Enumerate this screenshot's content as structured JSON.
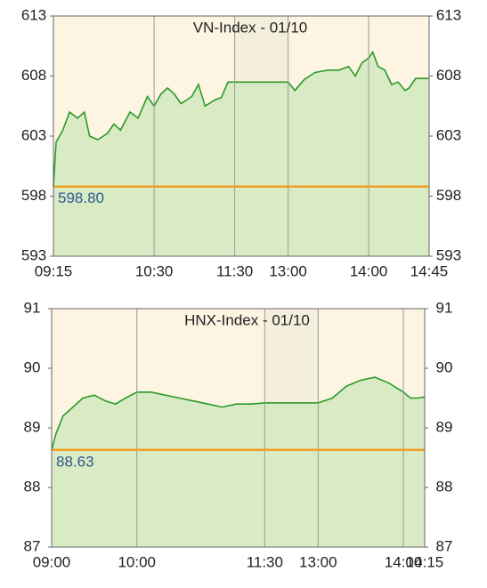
{
  "chart_data": [
    {
      "type": "line",
      "title": "VN-Index - 01/10",
      "x": [
        "09:15",
        "09:17",
        "09:22",
        "09:27",
        "09:33",
        "09:38",
        "09:42",
        "09:48",
        "09:55",
        "10:00",
        "10:05",
        "10:12",
        "10:18",
        "10:25",
        "10:30",
        "10:35",
        "10:40",
        "10:45",
        "10:50",
        "10:58",
        "11:03",
        "11:08",
        "11:15",
        "11:20",
        "11:25",
        "11:30",
        "13:00",
        "13:05",
        "13:12",
        "13:20",
        "13:30",
        "13:38",
        "13:45",
        "13:50",
        "13:55",
        "14:00",
        "14:03",
        "14:07",
        "14:12",
        "14:17",
        "14:22",
        "14:27",
        "14:30",
        "14:35",
        "14:45"
      ],
      "series": [
        {
          "color": "#2a9a2a",
          "values": [
            598.8,
            602.5,
            603.5,
            605,
            604.5,
            605,
            603,
            602.7,
            603.2,
            604,
            603.5,
            605,
            604.5,
            606.3,
            605.5,
            606.5,
            607,
            606.5,
            605.7,
            606.3,
            607.3,
            605.5,
            606,
            606.2,
            607.5,
            607.5,
            607.5,
            606.8,
            607.7,
            608.3,
            608.5,
            608.5,
            608.8,
            608,
            609.1,
            609.5,
            610,
            608.8,
            608.5,
            607.3,
            607.5,
            606.8,
            607,
            607.8,
            607.8
          ]
        }
      ],
      "reference": {
        "value": 598.8,
        "label": "598.80",
        "color": "#f0a020"
      },
      "xticks": [
        "09:15",
        "10:30",
        "11:30",
        "13:00",
        "14:00",
        "14:45"
      ],
      "ylim": [
        593,
        613
      ],
      "yticks": [
        593,
        598,
        603,
        608,
        613
      ],
      "grid": true
    },
    {
      "type": "line",
      "title": "HNX-Index - 01/10",
      "x": [
        "09:00",
        "09:03",
        "09:08",
        "09:15",
        "09:22",
        "09:30",
        "09:38",
        "09:45",
        "09:52",
        "10:00",
        "10:10",
        "10:20",
        "10:30",
        "10:40",
        "10:50",
        "11:00",
        "11:10",
        "11:20",
        "11:30",
        "13:00",
        "13:10",
        "13:20",
        "13:30",
        "13:40",
        "13:50",
        "14:00",
        "14:05",
        "14:10",
        "14:15"
      ],
      "series": [
        {
          "color": "#2a9a2a",
          "values": [
            88.63,
            88.9,
            89.2,
            89.35,
            89.5,
            89.55,
            89.45,
            89.4,
            89.5,
            89.6,
            89.6,
            89.55,
            89.5,
            89.45,
            89.4,
            89.35,
            89.4,
            89.4,
            89.42,
            89.42,
            89.5,
            89.7,
            89.8,
            89.85,
            89.75,
            89.6,
            89.5,
            89.5,
            89.52
          ]
        }
      ],
      "reference": {
        "value": 88.63,
        "color": "#f0a020"
      },
      "xticks": [
        "09:00",
        "10:00",
        "11:30",
        "13:00",
        "14:00",
        "14:15"
      ],
      "ylim": [
        87,
        91
      ],
      "yticks": [
        87,
        88,
        89,
        90,
        91
      ],
      "grid": true
    }
  ]
}
